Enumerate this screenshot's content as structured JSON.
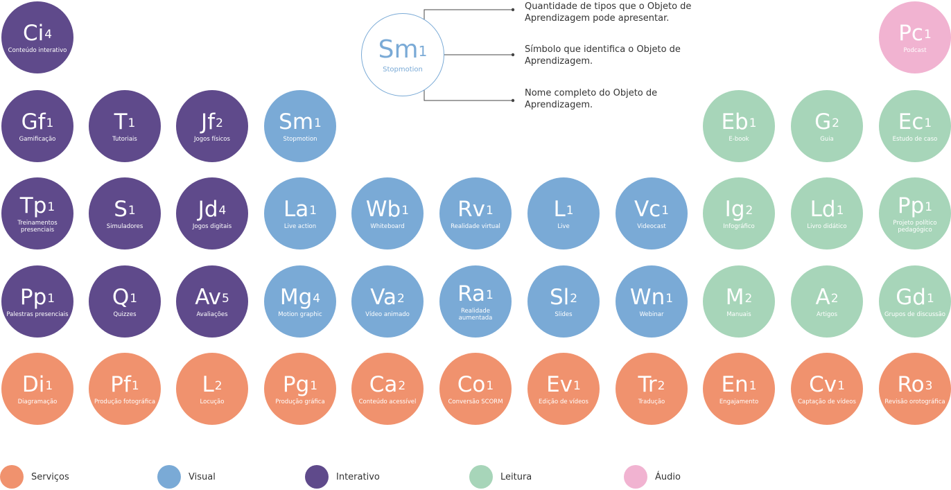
{
  "key": {
    "symbol": "Sm",
    "count": "1",
    "name": "Stopmotion",
    "callouts": [
      "Quantidade de tipos que o Objeto de Aprendizagem pode apresentar.",
      "Símbolo que identifica o Objeto de Aprendizagem.",
      "Nome completo do Objeto de Aprendizagem."
    ]
  },
  "elements": [
    {
      "id": "ci",
      "symbol": "Ci",
      "count": "4",
      "name": "Conteúdo interativo",
      "category": "interativo"
    },
    {
      "id": "pc",
      "symbol": "Pc",
      "count": "1",
      "name": "Podcast",
      "category": "audio"
    },
    {
      "id": "gf",
      "symbol": "Gf",
      "count": "1",
      "name": "Gamificação",
      "category": "interativo"
    },
    {
      "id": "t",
      "symbol": "T",
      "count": "1",
      "name": "Tutoriais",
      "category": "interativo"
    },
    {
      "id": "jf",
      "symbol": "Jf",
      "count": "2",
      "name": "Jogos físicos",
      "category": "interativo"
    },
    {
      "id": "sm",
      "symbol": "Sm",
      "count": "1",
      "name": "Stopmotion",
      "category": "visual"
    },
    {
      "id": "eb",
      "symbol": "Eb",
      "count": "1",
      "name": "E-book",
      "category": "leitura"
    },
    {
      "id": "g",
      "symbol": "G",
      "count": "2",
      "name": "Guia",
      "category": "leitura"
    },
    {
      "id": "ec",
      "symbol": "Ec",
      "count": "1",
      "name": "Estudo de caso",
      "category": "leitura"
    },
    {
      "id": "tp",
      "symbol": "Tp",
      "count": "1",
      "name": "Treinamentos presenciais",
      "category": "interativo"
    },
    {
      "id": "s",
      "symbol": "S",
      "count": "1",
      "name": "Simuladores",
      "category": "interativo"
    },
    {
      "id": "jd",
      "symbol": "Jd",
      "count": "4",
      "name": "Jogos digitais",
      "category": "interativo"
    },
    {
      "id": "la",
      "symbol": "La",
      "count": "1",
      "name": "Live action",
      "category": "visual"
    },
    {
      "id": "wb",
      "symbol": "Wb",
      "count": "1",
      "name": "Whiteboard",
      "category": "visual"
    },
    {
      "id": "rv",
      "symbol": "Rv",
      "count": "1",
      "name": "Realidade virtual",
      "category": "visual"
    },
    {
      "id": "l",
      "symbol": "L",
      "count": "1",
      "name": "Live",
      "category": "visual"
    },
    {
      "id": "vc",
      "symbol": "Vc",
      "count": "1",
      "name": "Videocast",
      "category": "visual"
    },
    {
      "id": "ig",
      "symbol": "Ig",
      "count": "2",
      "name": "Infográfico",
      "category": "leitura"
    },
    {
      "id": "ld",
      "symbol": "Ld",
      "count": "1",
      "name": "Livro didático",
      "category": "leitura"
    },
    {
      "id": "pp-leitura",
      "symbol": "Pp",
      "count": "1",
      "name": "Projeto político pedagógico",
      "category": "leitura"
    },
    {
      "id": "pp-interativo",
      "symbol": "Pp",
      "count": "1",
      "name": "Palestras presenciais",
      "category": "interativo"
    },
    {
      "id": "q",
      "symbol": "Q",
      "count": "1",
      "name": "Quizzes",
      "category": "interativo"
    },
    {
      "id": "av",
      "symbol": "Av",
      "count": "5",
      "name": "Avaliações",
      "category": "interativo"
    },
    {
      "id": "mg",
      "symbol": "Mg",
      "count": "4",
      "name": "Motion graphic",
      "category": "visual"
    },
    {
      "id": "va",
      "symbol": "Va",
      "count": "2",
      "name": "Vídeo animado",
      "category": "visual"
    },
    {
      "id": "ra",
      "symbol": "Ra",
      "count": "1",
      "name": "Realidade aumentada",
      "category": "visual"
    },
    {
      "id": "sl",
      "symbol": "Sl",
      "count": "2",
      "name": "Slides",
      "category": "visual"
    },
    {
      "id": "wn",
      "symbol": "Wn",
      "count": "1",
      "name": "Webinar",
      "category": "visual"
    },
    {
      "id": "m",
      "symbol": "M",
      "count": "2",
      "name": "Manuais",
      "category": "leitura"
    },
    {
      "id": "a",
      "symbol": "A",
      "count": "2",
      "name": "Artigos",
      "category": "leitura"
    },
    {
      "id": "gd",
      "symbol": "Gd",
      "count": "1",
      "name": "Grupos de discussão",
      "category": "leitura"
    },
    {
      "id": "di",
      "symbol": "Di",
      "count": "1",
      "name": "Diagramação",
      "category": "servicos"
    },
    {
      "id": "pf",
      "symbol": "Pf",
      "count": "1",
      "name": "Produção fotográfica",
      "category": "servicos"
    },
    {
      "id": "lo",
      "symbol": "L",
      "count": "2",
      "name": "Locução",
      "category": "servicos"
    },
    {
      "id": "pg",
      "symbol": "Pg",
      "count": "1",
      "name": "Produção gráfica",
      "category": "servicos"
    },
    {
      "id": "ca",
      "symbol": "Ca",
      "count": "2",
      "name": "Conteúdo acessível",
      "category": "servicos"
    },
    {
      "id": "co",
      "symbol": "Co",
      "count": "1",
      "name": "Conversão SCORM",
      "category": "servicos"
    },
    {
      "id": "ev",
      "symbol": "Ev",
      "count": "1",
      "name": "Edição de vídeos",
      "category": "servicos"
    },
    {
      "id": "tr",
      "symbol": "Tr",
      "count": "2",
      "name": "Tradução",
      "category": "servicos"
    },
    {
      "id": "en",
      "symbol": "En",
      "count": "1",
      "name": "Engajamento",
      "category": "servicos"
    },
    {
      "id": "cv",
      "symbol": "Cv",
      "count": "1",
      "name": "Captação de vídeos",
      "category": "servicos"
    },
    {
      "id": "ro",
      "symbol": "Ro",
      "count": "3",
      "name": "Revisão orotográfica",
      "category": "servicos"
    }
  ],
  "legend": [
    {
      "id": "servicos",
      "label": "Serviços",
      "color": "#f0926e"
    },
    {
      "id": "visual",
      "label": "Visual",
      "color": "#7aaad6"
    },
    {
      "id": "interativo",
      "label": "Interativo",
      "color": "#5f4a8b"
    },
    {
      "id": "leitura",
      "label": "Leitura",
      "color": "#a7d5b9"
    },
    {
      "id": "audio",
      "label": "Áudio",
      "color": "#f1b3d1"
    }
  ]
}
